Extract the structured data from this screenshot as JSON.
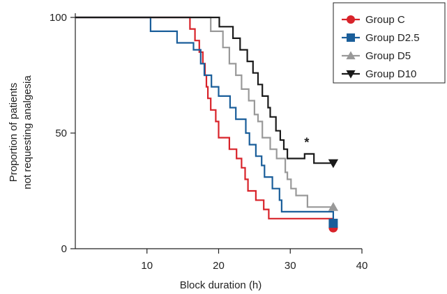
{
  "chart_data": {
    "type": "line",
    "step": true,
    "xlabel": "Block duration (h)",
    "ylabel_lines": [
      "Proportion of patients",
      "not requesting analgesia"
    ],
    "xlim": [
      0,
      40
    ],
    "ylim": [
      0,
      100
    ],
    "xticks": [
      10,
      20,
      30,
      40
    ],
    "yticks": [
      0,
      50,
      100
    ],
    "x_tick_labels": [
      "10",
      "20",
      "30",
      "40"
    ],
    "y_tick_labels": [
      "0",
      "50",
      "100"
    ],
    "grid": false,
    "legend_position": "top-right",
    "series": [
      {
        "name": "Group C",
        "color": "#d8232a",
        "marker": "circle",
        "points": [
          [
            0,
            100
          ],
          [
            16,
            100
          ],
          [
            16,
            95
          ],
          [
            16.7,
            95
          ],
          [
            16.7,
            90
          ],
          [
            17.3,
            90
          ],
          [
            17.3,
            85
          ],
          [
            17.8,
            85
          ],
          [
            17.8,
            80
          ],
          [
            18.1,
            80
          ],
          [
            18.1,
            75
          ],
          [
            18.3,
            75
          ],
          [
            18.3,
            70
          ],
          [
            18.5,
            70
          ],
          [
            18.5,
            65
          ],
          [
            18.9,
            65
          ],
          [
            18.9,
            60
          ],
          [
            19.6,
            60
          ],
          [
            19.6,
            55
          ],
          [
            20,
            55
          ],
          [
            20,
            48
          ],
          [
            21.5,
            48
          ],
          [
            21.5,
            43
          ],
          [
            22.5,
            43
          ],
          [
            22.5,
            39
          ],
          [
            23.2,
            39
          ],
          [
            23.2,
            35
          ],
          [
            23.7,
            35
          ],
          [
            23.7,
            30
          ],
          [
            24.1,
            30
          ],
          [
            24.1,
            25
          ],
          [
            25.2,
            25
          ],
          [
            25.2,
            21
          ],
          [
            26.3,
            21
          ],
          [
            26.3,
            17
          ],
          [
            27,
            17
          ],
          [
            27,
            13
          ],
          [
            36,
            13
          ],
          [
            36,
            9
          ]
        ]
      },
      {
        "name": "Group D2.5",
        "color": "#1a5e9a",
        "marker": "square",
        "points": [
          [
            0,
            100
          ],
          [
            10.5,
            100
          ],
          [
            10.5,
            94
          ],
          [
            14.2,
            94
          ],
          [
            14.2,
            89
          ],
          [
            16.5,
            89
          ],
          [
            16.5,
            86
          ],
          [
            17.5,
            86
          ],
          [
            17.5,
            80
          ],
          [
            18,
            80
          ],
          [
            18,
            75
          ],
          [
            19,
            75
          ],
          [
            19,
            70
          ],
          [
            20,
            70
          ],
          [
            20,
            66
          ],
          [
            21.6,
            66
          ],
          [
            21.6,
            61
          ],
          [
            22.4,
            61
          ],
          [
            22.4,
            56
          ],
          [
            23.8,
            56
          ],
          [
            23.8,
            50
          ],
          [
            24.3,
            50
          ],
          [
            24.3,
            45
          ],
          [
            25.2,
            45
          ],
          [
            25.2,
            40
          ],
          [
            26,
            40
          ],
          [
            26,
            36
          ],
          [
            26.4,
            36
          ],
          [
            26.4,
            31
          ],
          [
            27.5,
            31
          ],
          [
            27.5,
            26
          ],
          [
            28.5,
            26
          ],
          [
            28.5,
            21
          ],
          [
            28.8,
            21
          ],
          [
            28.8,
            16
          ],
          [
            36,
            16
          ],
          [
            36,
            11
          ]
        ]
      },
      {
        "name": "Group D5",
        "color": "#999999",
        "marker": "triangle-up",
        "points": [
          [
            0,
            100
          ],
          [
            18.9,
            100
          ],
          [
            18.9,
            94
          ],
          [
            20.6,
            94
          ],
          [
            20.6,
            87
          ],
          [
            21.5,
            87
          ],
          [
            21.5,
            80
          ],
          [
            22.4,
            80
          ],
          [
            22.4,
            75
          ],
          [
            23.2,
            75
          ],
          [
            23.2,
            69
          ],
          [
            24.2,
            69
          ],
          [
            24.2,
            64
          ],
          [
            25,
            64
          ],
          [
            25,
            58
          ],
          [
            25.5,
            58
          ],
          [
            25.5,
            55
          ],
          [
            26.1,
            55
          ],
          [
            26.1,
            48
          ],
          [
            27.2,
            48
          ],
          [
            27.2,
            43
          ],
          [
            28.1,
            43
          ],
          [
            28.1,
            39
          ],
          [
            29.3,
            39
          ],
          [
            29.3,
            33
          ],
          [
            29.6,
            33
          ],
          [
            29.6,
            30
          ],
          [
            30.1,
            30
          ],
          [
            30.1,
            26
          ],
          [
            30.8,
            26
          ],
          [
            30.8,
            23
          ],
          [
            32.4,
            23
          ],
          [
            32.4,
            18
          ],
          [
            36,
            18
          ]
        ]
      },
      {
        "name": "Group D10",
        "color": "#1a1a1a",
        "marker": "triangle-down",
        "points": [
          [
            0,
            100
          ],
          [
            20.1,
            100
          ],
          [
            20.1,
            96
          ],
          [
            22,
            96
          ],
          [
            22,
            91
          ],
          [
            23,
            91
          ],
          [
            23,
            86
          ],
          [
            24,
            86
          ],
          [
            24,
            81
          ],
          [
            24.8,
            81
          ],
          [
            24.8,
            76
          ],
          [
            25.5,
            76
          ],
          [
            25.5,
            71
          ],
          [
            26.1,
            71
          ],
          [
            26.1,
            66
          ],
          [
            26.9,
            66
          ],
          [
            26.9,
            61
          ],
          [
            27.2,
            61
          ],
          [
            27.2,
            57
          ],
          [
            28,
            57
          ],
          [
            28,
            51
          ],
          [
            28.6,
            51
          ],
          [
            28.6,
            47
          ],
          [
            29.1,
            47
          ],
          [
            29.1,
            43
          ],
          [
            29.6,
            43
          ],
          [
            29.6,
            39
          ],
          [
            32,
            39
          ],
          [
            32,
            41
          ],
          [
            33.3,
            41
          ],
          [
            33.3,
            37
          ],
          [
            36,
            37
          ]
        ]
      }
    ],
    "annotations": [
      {
        "text": "*",
        "x": 32.3,
        "y": 46
      }
    ]
  }
}
